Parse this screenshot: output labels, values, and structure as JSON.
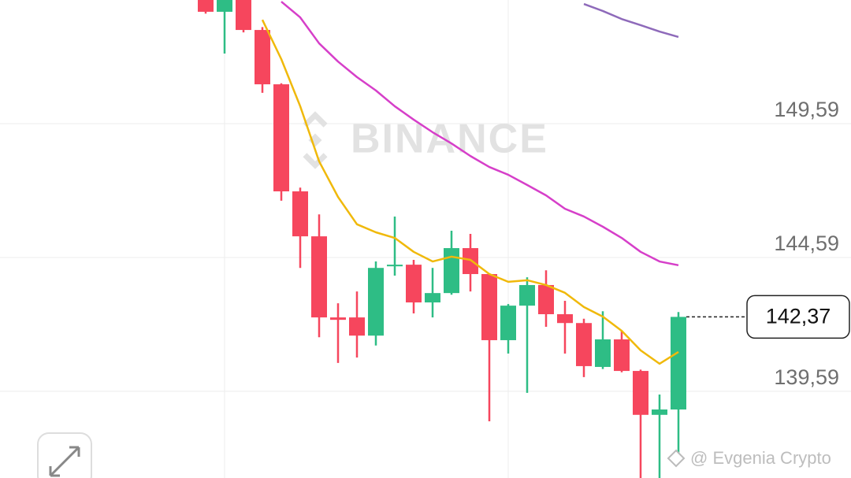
{
  "chart_data": {
    "type": "candlestick",
    "watermark": "BINANCE",
    "credit": "@ Evgenia Crypto",
    "categories": [
      null,
      null,
      null,
      null,
      null,
      null,
      null,
      null,
      null,
      null,
      null,
      null,
      null,
      null,
      null,
      null,
      null,
      null,
      null,
      null,
      null,
      null,
      null,
      null,
      null,
      null
    ],
    "open": [
      154.3,
      153.77,
      154.3,
      153.09,
      151.06,
      147.06,
      145.38,
      142.35,
      142.35,
      141.67,
      144.26,
      144.32,
      142.91,
      143.26,
      144.94,
      143.97,
      141.5,
      142.79,
      143.56,
      142.47,
      142.14,
      140.5,
      141.53,
      140.35,
      138.71,
      138.91
    ],
    "high": [
      154.35,
      154.35,
      154.35,
      153.2,
      151.1,
      147.2,
      146.2,
      142.88,
      143.32,
      144.44,
      146.12,
      144.5,
      144.2,
      145.59,
      145.47,
      144.0,
      142.85,
      143.85,
      144.11,
      142.97,
      142.3,
      142.58,
      141.85,
      140.4,
      139.47,
      142.55
    ],
    "low": [
      153.7,
      152.21,
      153.0,
      150.74,
      146.71,
      144.2,
      141.61,
      140.65,
      140.85,
      141.3,
      143.91,
      142.5,
      142.35,
      143.2,
      143.32,
      138.47,
      141.0,
      139.53,
      142.0,
      141.0,
      140.12,
      140.42,
      140.3,
      136.2,
      136.2,
      137.3
    ],
    "close": [
      153.77,
      154.3,
      153.09,
      151.06,
      147.06,
      145.38,
      142.35,
      142.26,
      141.67,
      144.2,
      144.32,
      142.91,
      143.26,
      144.94,
      143.97,
      141.5,
      142.79,
      143.56,
      142.47,
      142.14,
      140.53,
      141.53,
      140.35,
      138.71,
      138.91,
      142.37
    ],
    "up_color": "#2ebd85",
    "down_color": "#f6465d",
    "overlays": [
      {
        "color": "#f0b90b",
        "values": [
          null,
          null,
          null,
          153.47,
          152.0,
          150.24,
          148.18,
          146.85,
          145.83,
          145.53,
          145.32,
          144.8,
          144.44,
          144.62,
          144.5,
          143.97,
          143.68,
          143.74,
          143.56,
          143.27,
          142.74,
          142.38,
          141.85,
          141.12,
          140.62,
          141.06
        ]
      },
      {
        "color": "#d63fc9",
        "values": [
          null,
          null,
          null,
          null,
          154.15,
          153.56,
          152.59,
          151.91,
          151.33,
          150.83,
          150.24,
          149.74,
          149.27,
          148.85,
          148.38,
          147.97,
          147.68,
          147.3,
          146.91,
          146.41,
          146.12,
          145.74,
          145.32,
          144.8,
          144.44,
          144.3
        ]
      },
      {
        "color": "#8e6aba",
        "values": [
          null,
          null,
          null,
          null,
          null,
          null,
          null,
          null,
          null,
          null,
          null,
          null,
          null,
          null,
          null,
          null,
          null,
          null,
          null,
          null,
          154.06,
          153.8,
          153.5,
          153.27,
          153.03,
          152.83
        ]
      }
    ],
    "ylim": [
      136.35,
      154.21
    ],
    "yticks": [
      {
        "value": 139.59,
        "label": "139,59"
      },
      {
        "value": 144.59,
        "label": "144,59"
      },
      {
        "value": 149.59,
        "label": "149,59"
      }
    ],
    "last_price": {
      "value": 142.37,
      "label": "142,37"
    },
    "grid": true
  }
}
